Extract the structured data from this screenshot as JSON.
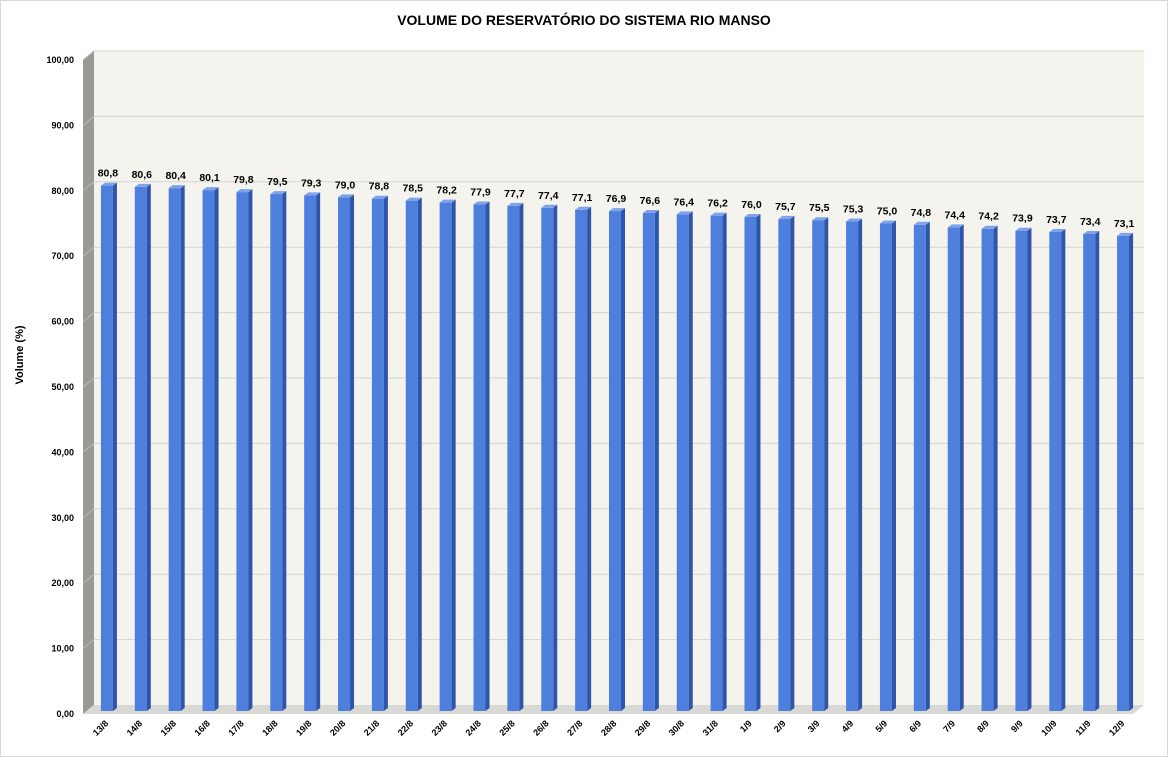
{
  "chart_data": {
    "type": "bar",
    "title": "VOLUME DO RESERVATÓRIO DO SISTEMA RIO MANSO",
    "ylabel": "Volume (%)",
    "xlabel": "",
    "ylim": [
      0,
      100
    ],
    "y_ticks": [
      "0,00",
      "10,00",
      "20,00",
      "30,00",
      "40,00",
      "50,00",
      "60,00",
      "70,00",
      "80,00",
      "90,00",
      "100,00"
    ],
    "categories": [
      "13/8",
      "14/8",
      "15/8",
      "16/8",
      "17/8",
      "18/8",
      "19/8",
      "20/8",
      "21/8",
      "22/8",
      "23/8",
      "24/8",
      "25/8",
      "26/8",
      "27/8",
      "28/8",
      "29/8",
      "30/8",
      "31/8",
      "1/9",
      "2/9",
      "3/9",
      "4/9",
      "5/9",
      "6/9",
      "7/9",
      "8/9",
      "9/9",
      "10/9",
      "11/9",
      "12/9"
    ],
    "values": [
      80.8,
      80.6,
      80.4,
      80.1,
      79.8,
      79.5,
      79.3,
      79.0,
      78.8,
      78.5,
      78.2,
      77.9,
      77.7,
      77.4,
      77.1,
      76.9,
      76.6,
      76.4,
      76.2,
      76.0,
      75.7,
      75.5,
      75.3,
      75.0,
      74.8,
      74.4,
      74.2,
      73.9,
      73.7,
      73.4,
      73.1
    ],
    "data_labels": [
      "80,8",
      "80,6",
      "80,4",
      "80,1",
      "79,8",
      "79,5",
      "79,3",
      "79,0",
      "78,8",
      "78,5",
      "78,2",
      "77,9",
      "77,7",
      "77,4",
      "77,1",
      "76,9",
      "76,6",
      "76,4",
      "76,2",
      "76,0",
      "75,7",
      "75,5",
      "75,3",
      "75,0",
      "74,8",
      "74,4",
      "74,2",
      "73,9",
      "73,7",
      "73,4",
      "73,1"
    ],
    "grid": true,
    "legend": "none",
    "style": "3d-column",
    "colors": {
      "bar_front": "#4f7fdd",
      "bar_side": "#2e55a8",
      "bar_top": "#7fa3ea",
      "plot_back": "#f4f3ee",
      "wall": "#9a9a95",
      "floor": "#d8d8d4",
      "gridline": "#d4d4d0"
    }
  }
}
